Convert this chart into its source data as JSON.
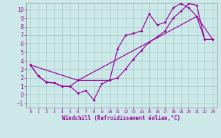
{
  "title": "",
  "xlabel": "Windchill (Refroidissement éolien,°C)",
  "ylabel": "",
  "background_color": "#cce8e8",
  "grid_color": "#aacccc",
  "line_color": "#990099",
  "spine_color": "#888888",
  "xlim": [
    -0.5,
    23.5
  ],
  "ylim": [
    -1.5,
    10.8
  ],
  "xticks": [
    0,
    1,
    2,
    3,
    4,
    5,
    6,
    7,
    8,
    9,
    10,
    11,
    12,
    13,
    14,
    15,
    16,
    17,
    18,
    19,
    20,
    21,
    22,
    23
  ],
  "yticks": [
    -1,
    0,
    1,
    2,
    3,
    4,
    5,
    6,
    7,
    8,
    9,
    10
  ],
  "line1_x": [
    0,
    1,
    2,
    3,
    4,
    5,
    6,
    7,
    8,
    9,
    10,
    11,
    12,
    13,
    14,
    15,
    16,
    17,
    18,
    19,
    20,
    21,
    22,
    23
  ],
  "line1_y": [
    3.5,
    2.2,
    1.5,
    1.4,
    1.0,
    1.0,
    0.2,
    0.5,
    -0.6,
    1.3,
    1.7,
    5.4,
    7.0,
    7.2,
    7.5,
    9.5,
    8.2,
    8.5,
    10.2,
    10.7,
    10.2,
    9.2,
    6.5,
    6.5
  ],
  "line2_x": [
    0,
    1,
    2,
    3,
    4,
    5,
    6,
    10,
    11,
    12,
    13,
    14,
    15,
    16,
    17,
    18,
    19,
    20,
    21,
    22,
    23
  ],
  "line2_y": [
    3.5,
    2.2,
    1.5,
    1.4,
    1.0,
    1.0,
    1.7,
    1.7,
    2.0,
    3.0,
    4.2,
    5.2,
    6.2,
    6.8,
    7.5,
    9.0,
    9.8,
    10.7,
    10.5,
    6.5,
    6.5
  ],
  "line3_x": [
    0,
    6,
    21,
    23
  ],
  "line3_y": [
    3.5,
    1.7,
    9.2,
    6.5
  ]
}
